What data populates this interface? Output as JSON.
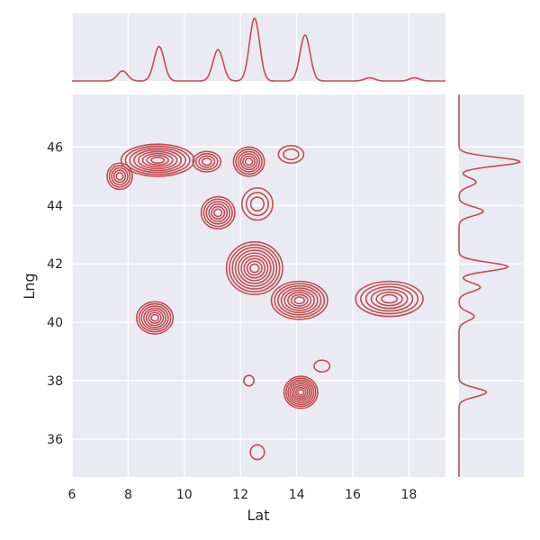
{
  "chart_data": {
    "type": "joint-kde",
    "title": "",
    "xlabel": "Lat",
    "ylabel": "Lng",
    "xlim": [
      6,
      19.3
    ],
    "ylim": [
      34.7,
      47.8
    ],
    "x_ticks": [
      6,
      8,
      10,
      12,
      14,
      16,
      18
    ],
    "y_ticks": [
      36,
      38,
      40,
      42,
      44,
      46
    ],
    "color": "#c44e52",
    "background": "#eaeaf2",
    "grid": true,
    "marginal_x_peaks": [
      {
        "x": 7.8,
        "density": 0.16
      },
      {
        "x": 9.1,
        "density": 0.55
      },
      {
        "x": 11.2,
        "density": 0.5
      },
      {
        "x": 12.5,
        "density": 1.0
      },
      {
        "x": 14.3,
        "density": 0.73
      },
      {
        "x": 16.6,
        "density": 0.05
      },
      {
        "x": 18.2,
        "density": 0.05
      }
    ],
    "marginal_y_peaks": [
      {
        "y": 37.6,
        "density": 0.45
      },
      {
        "y": 40.2,
        "density": 0.25
      },
      {
        "y": 41.2,
        "density": 0.35
      },
      {
        "y": 41.9,
        "density": 0.8
      },
      {
        "y": 43.8,
        "density": 0.4
      },
      {
        "y": 44.8,
        "density": 0.28
      },
      {
        "y": 45.5,
        "density": 1.0
      }
    ],
    "density_clusters": [
      {
        "x": 9.05,
        "y": 45.55,
        "rx": 1.3,
        "ry": 0.55,
        "levels": 8
      },
      {
        "x": 7.7,
        "y": 45.0,
        "rx": 0.45,
        "ry": 0.45,
        "levels": 5
      },
      {
        "x": 10.8,
        "y": 45.5,
        "rx": 0.5,
        "ry": 0.35,
        "levels": 4
      },
      {
        "x": 12.3,
        "y": 45.5,
        "rx": 0.55,
        "ry": 0.5,
        "levels": 6
      },
      {
        "x": 13.8,
        "y": 45.75,
        "rx": 0.45,
        "ry": 0.3,
        "levels": 2
      },
      {
        "x": 11.2,
        "y": 43.75,
        "rx": 0.6,
        "ry": 0.55,
        "levels": 6
      },
      {
        "x": 12.6,
        "y": 44.05,
        "rx": 0.55,
        "ry": 0.55,
        "levels": 3
      },
      {
        "x": 12.5,
        "y": 41.85,
        "rx": 1.0,
        "ry": 0.9,
        "levels": 9
      },
      {
        "x": 14.1,
        "y": 40.75,
        "rx": 1.0,
        "ry": 0.65,
        "levels": 8
      },
      {
        "x": 17.3,
        "y": 40.8,
        "rx": 1.2,
        "ry": 0.6,
        "levels": 6
      },
      {
        "x": 8.95,
        "y": 40.15,
        "rx": 0.65,
        "ry": 0.55,
        "levels": 7
      },
      {
        "x": 14.15,
        "y": 37.6,
        "rx": 0.6,
        "ry": 0.55,
        "levels": 8
      },
      {
        "x": 12.6,
        "y": 35.55,
        "rx": 0.25,
        "ry": 0.25,
        "levels": 1
      },
      {
        "x": 12.3,
        "y": 38.0,
        "rx": 0.18,
        "ry": 0.18,
        "levels": 1
      },
      {
        "x": 14.9,
        "y": 38.5,
        "rx": 0.28,
        "ry": 0.2,
        "levels": 1
      }
    ]
  }
}
